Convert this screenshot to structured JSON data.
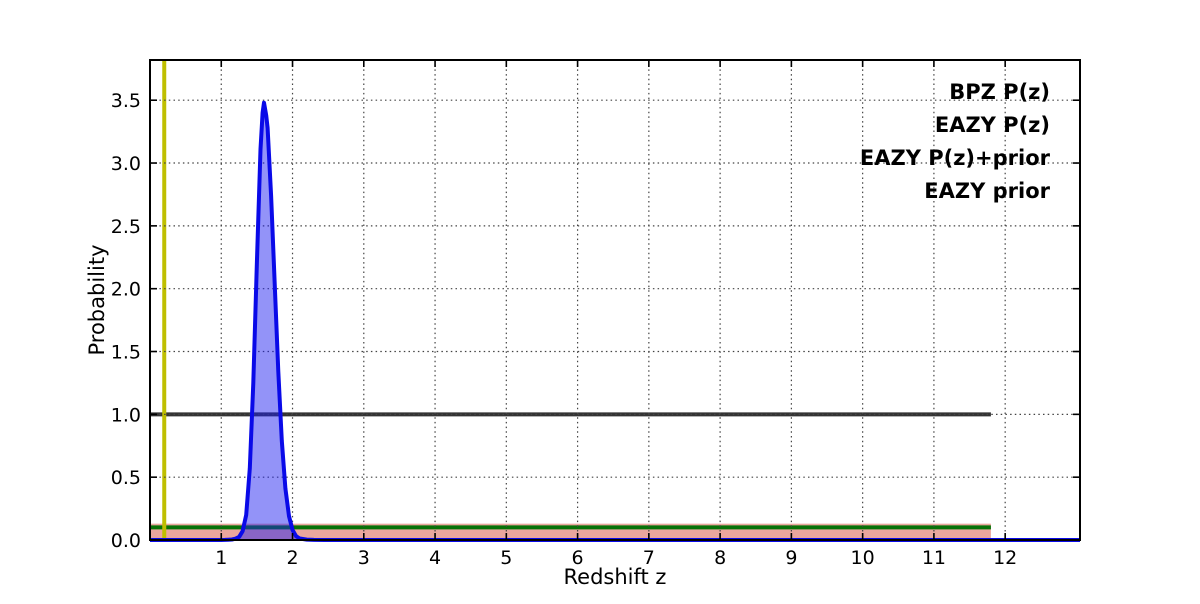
{
  "figure": {
    "kind": "matplotlib-style-plot",
    "background": "#ffffff",
    "frame_color": "#000000"
  },
  "chart_data": {
    "type": "line",
    "title": "",
    "xlabel": "Redshift z",
    "ylabel": "Probability",
    "xlim": [
      0,
      13.05
    ],
    "ylim": [
      0,
      3.82
    ],
    "xticks": [
      "1",
      "2",
      "3",
      "4",
      "5",
      "6",
      "7",
      "8",
      "9",
      "10",
      "11",
      "12"
    ],
    "yticks": [
      "0.0",
      "0.5",
      "1.0",
      "1.5",
      "2.0",
      "2.5",
      "3.0",
      "3.5"
    ],
    "grid": {
      "on": true,
      "linestyle": "dotted",
      "color": "#444444"
    },
    "series": [
      {
        "name": "EAZY P(z)",
        "type": "flat-filled",
        "level": 0.13,
        "x_start": 0,
        "x_end": 11.8,
        "fill_color": "#eba79e"
      },
      {
        "name": "EAZY P(z)+prior",
        "type": "flat-line",
        "level": 0.1,
        "x_start": 0,
        "x_end": 11.8,
        "color": "#077207",
        "linewidth": 4
      },
      {
        "name": "EAZY prior",
        "type": "flat-line",
        "level": 1.0,
        "x_start": 0,
        "x_end": 11.8,
        "color": "#343434",
        "linewidth": 4
      },
      {
        "name": "redshift-marker",
        "type": "vline",
        "x": 0.2,
        "color": "#bfbf00",
        "linewidth": 4
      },
      {
        "name": "BPZ P(z)",
        "type": "curve",
        "color": "#0a0ae8",
        "fill_color": "rgba(30,30,240,0.48)",
        "linewidth": 4,
        "peak": {
          "x": 1.6,
          "y": 3.48
        },
        "x": [
          0.0,
          0.9,
          1.0,
          1.05,
          1.1,
          1.15,
          1.2,
          1.25,
          1.3,
          1.35,
          1.4,
          1.45,
          1.5,
          1.55,
          1.58,
          1.6,
          1.63,
          1.65,
          1.7,
          1.75,
          1.8,
          1.85,
          1.9,
          1.95,
          2.0,
          2.05,
          2.1,
          2.2,
          2.3,
          2.45,
          13.05
        ],
        "y": [
          0,
          0,
          0,
          0.001,
          0.002,
          0.004,
          0.01,
          0.025,
          0.07,
          0.2,
          0.57,
          1.25,
          2.21,
          3.11,
          3.4,
          3.48,
          3.38,
          3.28,
          2.74,
          2.04,
          1.34,
          0.79,
          0.41,
          0.19,
          0.08,
          0.03,
          0.012,
          0.003,
          0.001,
          0,
          0
        ]
      }
    ]
  },
  "legend": {
    "position": "top-right",
    "entries": [
      {
        "label": "BPZ P(z)",
        "color": "#0000ee"
      },
      {
        "label": "EAZY P(z)",
        "color": "#ee1111"
      },
      {
        "label": "EAZY P(z)+prior",
        "color": "#077207"
      },
      {
        "label": "EAZY prior",
        "color": "#111111"
      }
    ]
  }
}
